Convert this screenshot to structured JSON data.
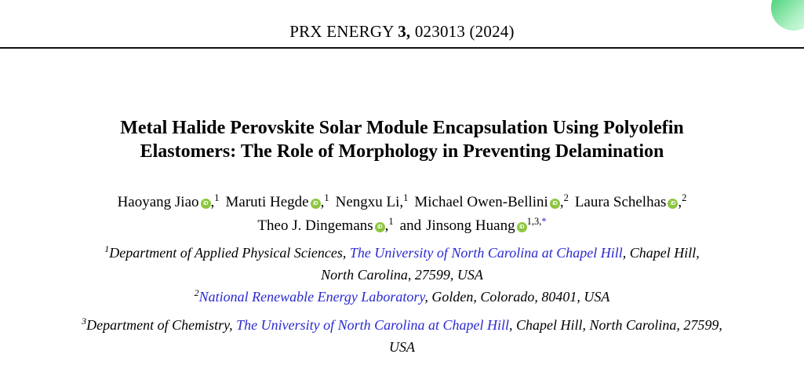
{
  "header": {
    "journal_pre": "PRX ENERGY ",
    "volume_bold": "3,",
    "issue_rest": " 023013 (2024)"
  },
  "title": {
    "line1": "Metal Halide Perovskite Solar Module Encapsulation Using Polyolefin",
    "line2": "Elastomers: The Role of Morphology in Preventing Delamination"
  },
  "icons": {
    "orcid_label": "iD",
    "orcid_color": "#8cc63f"
  },
  "authors": [
    {
      "name": "Haoyang Jiao",
      "has_orcid": true,
      "sep": ",",
      "sup": "1"
    },
    {
      "name": "Maruti Hegde",
      "has_orcid": true,
      "sep": ",",
      "sup": "1"
    },
    {
      "name": "Nengxu Li",
      "has_orcid": false,
      "sep": ",",
      "sup": "1"
    },
    {
      "name": "Michael Owen-Bellini",
      "has_orcid": true,
      "sep": ",",
      "sup": "2"
    },
    {
      "name": "Laura Schelhas",
      "has_orcid": true,
      "sep": ",",
      "sup": "2"
    },
    {
      "name": "Theo J. Dingemans",
      "has_orcid": true,
      "sep": ",",
      "sup": "1"
    },
    {
      "pre": "and",
      "name": "Jinsong Huang",
      "has_orcid": true,
      "sup": "1,3,",
      "sup_star": "*"
    }
  ],
  "affiliations": [
    {
      "sup": "1",
      "line1_pre": "Department of Applied Physical Sciences, ",
      "line1_link": "The University of North Carolina at Chapel Hill",
      "line1_post": ", Chapel Hill,",
      "line2": "North Carolina, 27599, USA"
    },
    {
      "sup": "2",
      "line1_link": "National Renewable Energy Laboratory",
      "line1_post": ", Golden, Colorado, 80401, USA"
    },
    {
      "sup": "3",
      "line1_pre": "Department of Chemistry, ",
      "line1_link": "The University of North Carolina at Chapel Hill",
      "line1_post": ", Chapel Hill, North Carolina, 27599,",
      "line2": "USA"
    }
  ],
  "colors": {
    "link": "#2a2ad2",
    "rule": "#111111",
    "orcid_green": "#8cc63f",
    "corner_green_start": "#57d584",
    "corner_green_end": "#e2fbe9"
  }
}
